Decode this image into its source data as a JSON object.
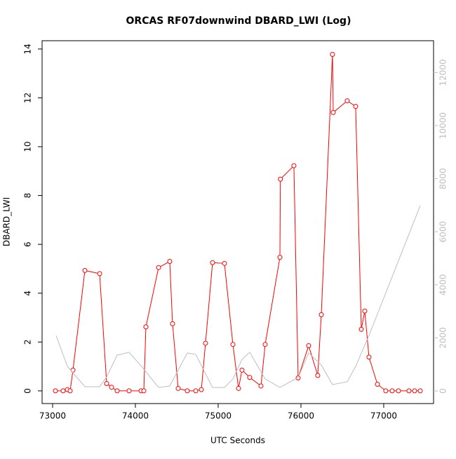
{
  "chart_data": {
    "type": "line",
    "title": "ORCAS RF07downwind DBARD_LWI (Log)",
    "xlabel": "UTC Seconds",
    "ylabel": "DBARD_LWI",
    "xlim": [
      72873,
      77602
    ],
    "xticks": [
      73000,
      74000,
      75000,
      76000,
      77000
    ],
    "ylim": [
      -0.52,
      14.34
    ],
    "yticks": [
      0,
      2,
      4,
      6,
      8,
      10,
      12,
      14
    ],
    "y2lim": [
      -476,
      13200
    ],
    "y2ticks": [
      0,
      2000,
      4000,
      6000,
      8000,
      10000,
      12000
    ],
    "series": [
      {
        "color": "#ff0000",
        "markers": true,
        "x": [
          73034,
          73127,
          73178,
          73212,
          73246,
          73390,
          73568,
          73653,
          73712,
          73780,
          73924,
          74068,
          74102,
          74127,
          74280,
          74415,
          74449,
          74517,
          74627,
          74729,
          74797,
          74847,
          74932,
          75076,
          75178,
          75246,
          75288,
          75381,
          75517,
          75568,
          75746,
          75752,
          75915,
          75966,
          76093,
          76203,
          76246,
          76381,
          76390,
          76559,
          76661,
          76729,
          76771,
          76822,
          76924,
          77025,
          77102,
          77178,
          77305,
          77373,
          77441
        ],
        "values": [
          0,
          0,
          0.05,
          0,
          0.85,
          4.93,
          4.8,
          0.3,
          0.15,
          0,
          0,
          0,
          0,
          2.62,
          5.05,
          5.3,
          2.75,
          0.1,
          0,
          0,
          0.05,
          1.95,
          5.25,
          5.22,
          1.9,
          0.1,
          0.85,
          0.55,
          0.2,
          1.9,
          5.47,
          8.67,
          9.22,
          0.53,
          1.85,
          0.63,
          3.12,
          13.78,
          11.4,
          11.88,
          11.65,
          2.52,
          3.27,
          1.38,
          0.27,
          0,
          0,
          0,
          0,
          0,
          0
        ]
      },
      {
        "color": "#bebebe",
        "axis": "y2",
        "markers": false,
        "x": [
          73042,
          73178,
          73390,
          73568,
          73653,
          73780,
          73924,
          74068,
          74280,
          74415,
          74627,
          74729,
          74932,
          75076,
          75178,
          75288,
          75381,
          75568,
          75746,
          75915,
          75966,
          76093,
          76246,
          76381,
          76559,
          76661,
          76822,
          77441
        ],
        "values": [
          2090,
          926,
          160,
          160,
          530,
          1350,
          1455,
          950,
          130,
          185,
          1430,
          1375,
          130,
          130,
          450,
          1190,
          1455,
          450,
          130,
          420,
          500,
          1430,
          980,
          240,
          345,
          925,
          2090,
          6985
        ]
      }
    ]
  }
}
